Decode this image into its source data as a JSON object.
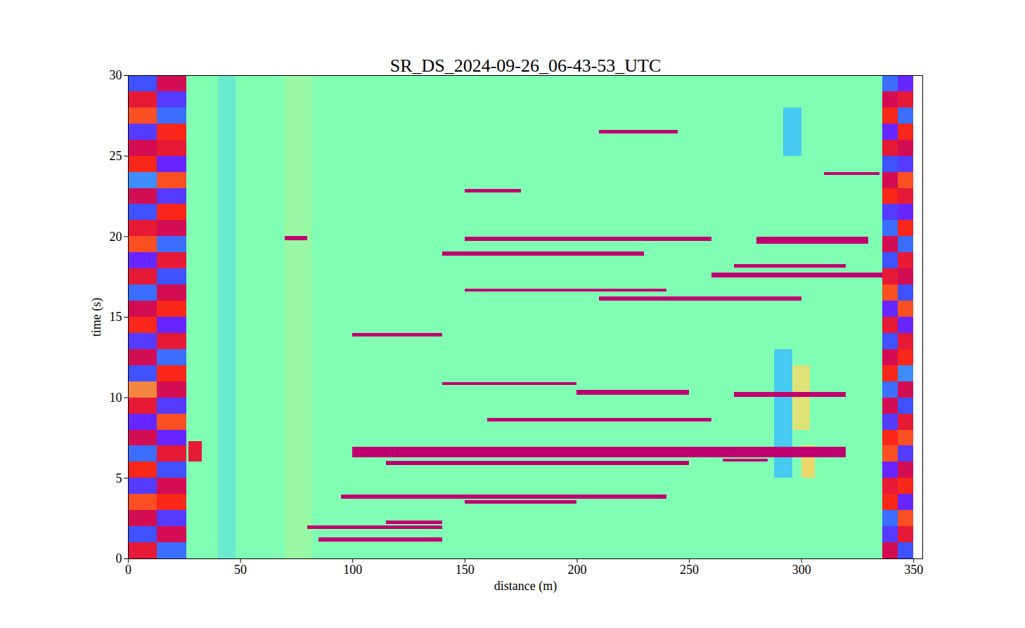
{
  "chart_data": {
    "type": "heatmap",
    "title": "SR_DS_2024-09-26_06-43-53_UTC",
    "x_label": "distance (m)",
    "y_label": "time (s)",
    "xlim": [
      0,
      354
    ],
    "ylim": [
      0,
      30
    ],
    "xticks": [
      0,
      50,
      100,
      150,
      200,
      250,
      300,
      350
    ],
    "yticks": [
      0,
      5,
      10,
      15,
      20,
      25,
      30
    ],
    "zlim": [
      -1,
      1
    ],
    "cells": [
      {
        "x0": 26,
        "x1": 336,
        "t0": 0,
        "t1": 30,
        "v": 0
      },
      {
        "x0": 40,
        "x1": 48,
        "t0": 0,
        "t1": 30,
        "v": -0.12
      },
      {
        "x0": 70,
        "x1": 82,
        "t0": 0,
        "t1": 30,
        "v": 0.08
      },
      {
        "x0": 288,
        "x1": 296,
        "t0": 5,
        "t1": 13,
        "v": -0.3
      },
      {
        "x0": 296,
        "x1": 304,
        "t0": 8,
        "t1": 12,
        "v": 0.3
      },
      {
        "x0": 292,
        "x1": 300,
        "t0": 25,
        "t1": 28,
        "v": -0.3
      },
      {
        "x0": 300,
        "x1": 306,
        "t0": 5,
        "t1": 7,
        "v": 0.35
      },
      {
        "x0": 27,
        "x1": 33,
        "t0": 6,
        "t1": 7.3,
        "v": 0.8
      },
      {
        "x0": 85,
        "x1": 140,
        "t0": 1.05,
        "t1": 1.3,
        "v": 1
      },
      {
        "x0": 80,
        "x1": 140,
        "t0": 1.85,
        "t1": 2.05,
        "v": 1
      },
      {
        "x0": 115,
        "x1": 140,
        "t0": 2.15,
        "t1": 2.35,
        "v": 1
      },
      {
        "x0": 95,
        "x1": 240,
        "t0": 3.7,
        "t1": 3.95,
        "v": 1
      },
      {
        "x0": 150,
        "x1": 200,
        "t0": 3.4,
        "t1": 3.6,
        "v": 1
      },
      {
        "x0": 115,
        "x1": 250,
        "t0": 5.8,
        "t1": 6.05,
        "v": 1
      },
      {
        "x0": 100,
        "x1": 320,
        "t0": 6.3,
        "t1": 6.95,
        "v": 1
      },
      {
        "x0": 265,
        "x1": 285,
        "t0": 6.0,
        "t1": 6.2,
        "v": 1
      },
      {
        "x0": 160,
        "x1": 260,
        "t0": 8.5,
        "t1": 8.7,
        "v": 1
      },
      {
        "x0": 200,
        "x1": 250,
        "t0": 10.15,
        "t1": 10.45,
        "v": 1
      },
      {
        "x0": 270,
        "x1": 320,
        "t0": 10.05,
        "t1": 10.35,
        "v": 1
      },
      {
        "x0": 140,
        "x1": 200,
        "t0": 10.75,
        "t1": 10.95,
        "v": 1
      },
      {
        "x0": 100,
        "x1": 140,
        "t0": 13.8,
        "t1": 14.0,
        "v": 1
      },
      {
        "x0": 210,
        "x1": 300,
        "t0": 16.0,
        "t1": 16.25,
        "v": 1
      },
      {
        "x0": 150,
        "x1": 240,
        "t0": 16.55,
        "t1": 16.75,
        "v": 1
      },
      {
        "x0": 260,
        "x1": 340,
        "t0": 17.45,
        "t1": 17.75,
        "v": 1
      },
      {
        "x0": 270,
        "x1": 320,
        "t0": 18.05,
        "t1": 18.25,
        "v": 1
      },
      {
        "x0": 140,
        "x1": 230,
        "t0": 18.8,
        "t1": 19.05,
        "v": 1
      },
      {
        "x0": 150,
        "x1": 260,
        "t0": 19.7,
        "t1": 19.95,
        "v": 1
      },
      {
        "x0": 280,
        "x1": 330,
        "t0": 19.55,
        "t1": 19.95,
        "v": 1
      },
      {
        "x0": 70,
        "x1": 80,
        "t0": 19.75,
        "t1": 20.0,
        "v": 1
      },
      {
        "x0": 150,
        "x1": 175,
        "t0": 22.7,
        "t1": 22.95,
        "v": 1
      },
      {
        "x0": 310,
        "x1": 335,
        "t0": 23.8,
        "t1": 24.0,
        "v": 1
      },
      {
        "x0": 210,
        "x1": 245,
        "t0": 26.4,
        "t1": 26.6,
        "v": 1
      }
    ],
    "noise_columns": [
      {
        "x0": 0,
        "x1": 13,
        "values": [
          0.8,
          -0.7,
          0.9,
          0.6,
          -0.8,
          0.7,
          -0.6,
          0.9,
          -0.9,
          0.8,
          0.5,
          -0.7,
          0.9,
          -0.8,
          0.7,
          0.9,
          -0.6,
          0.8,
          -0.9,
          0.6,
          0.8,
          -0.7,
          0.9,
          -0.5,
          0.7,
          0.9,
          -0.8,
          0.6,
          0.8,
          -0.7
        ]
      },
      {
        "x0": 13,
        "x1": 26,
        "values": [
          -0.6,
          0.9,
          -0.8,
          0.7,
          0.9,
          -0.7,
          0.8,
          -0.9,
          0.6,
          -0.8,
          0.9,
          0.7,
          -0.6,
          0.8,
          -0.9,
          0.7,
          0.9,
          -0.7,
          0.8,
          -0.6,
          0.9,
          0.7,
          -0.8,
          0.6,
          -0.9,
          0.8,
          0.7,
          -0.6,
          -0.8,
          0.9
        ]
      },
      {
        "x0": 336,
        "x1": 343,
        "values": [
          0.9,
          -0.8,
          -0.6,
          0.7,
          0.8,
          -0.9,
          0.6,
          0.7,
          -0.8,
          0.9,
          -0.6,
          0.7,
          0.9,
          -0.7,
          0.8,
          -0.9,
          0.6,
          0.8,
          -0.7,
          0.9,
          -0.6,
          -0.8,
          0.7,
          0.9,
          -0.7,
          0.8,
          -0.9,
          0.7,
          0.9,
          -0.6
        ]
      },
      {
        "x0": 343,
        "x1": 350,
        "values": [
          -0.7,
          0.8,
          0.6,
          -0.9,
          0.7,
          0.9,
          -0.8,
          0.6,
          0.8,
          -0.7,
          0.9,
          -0.5,
          0.7,
          0.8,
          -0.9,
          0.6,
          -0.7,
          0.9,
          0.8,
          -0.6,
          0.7,
          -0.9,
          0.8,
          0.6,
          -0.8,
          0.9,
          0.7,
          -0.6,
          0.8,
          -0.9
        ]
      }
    ]
  }
}
